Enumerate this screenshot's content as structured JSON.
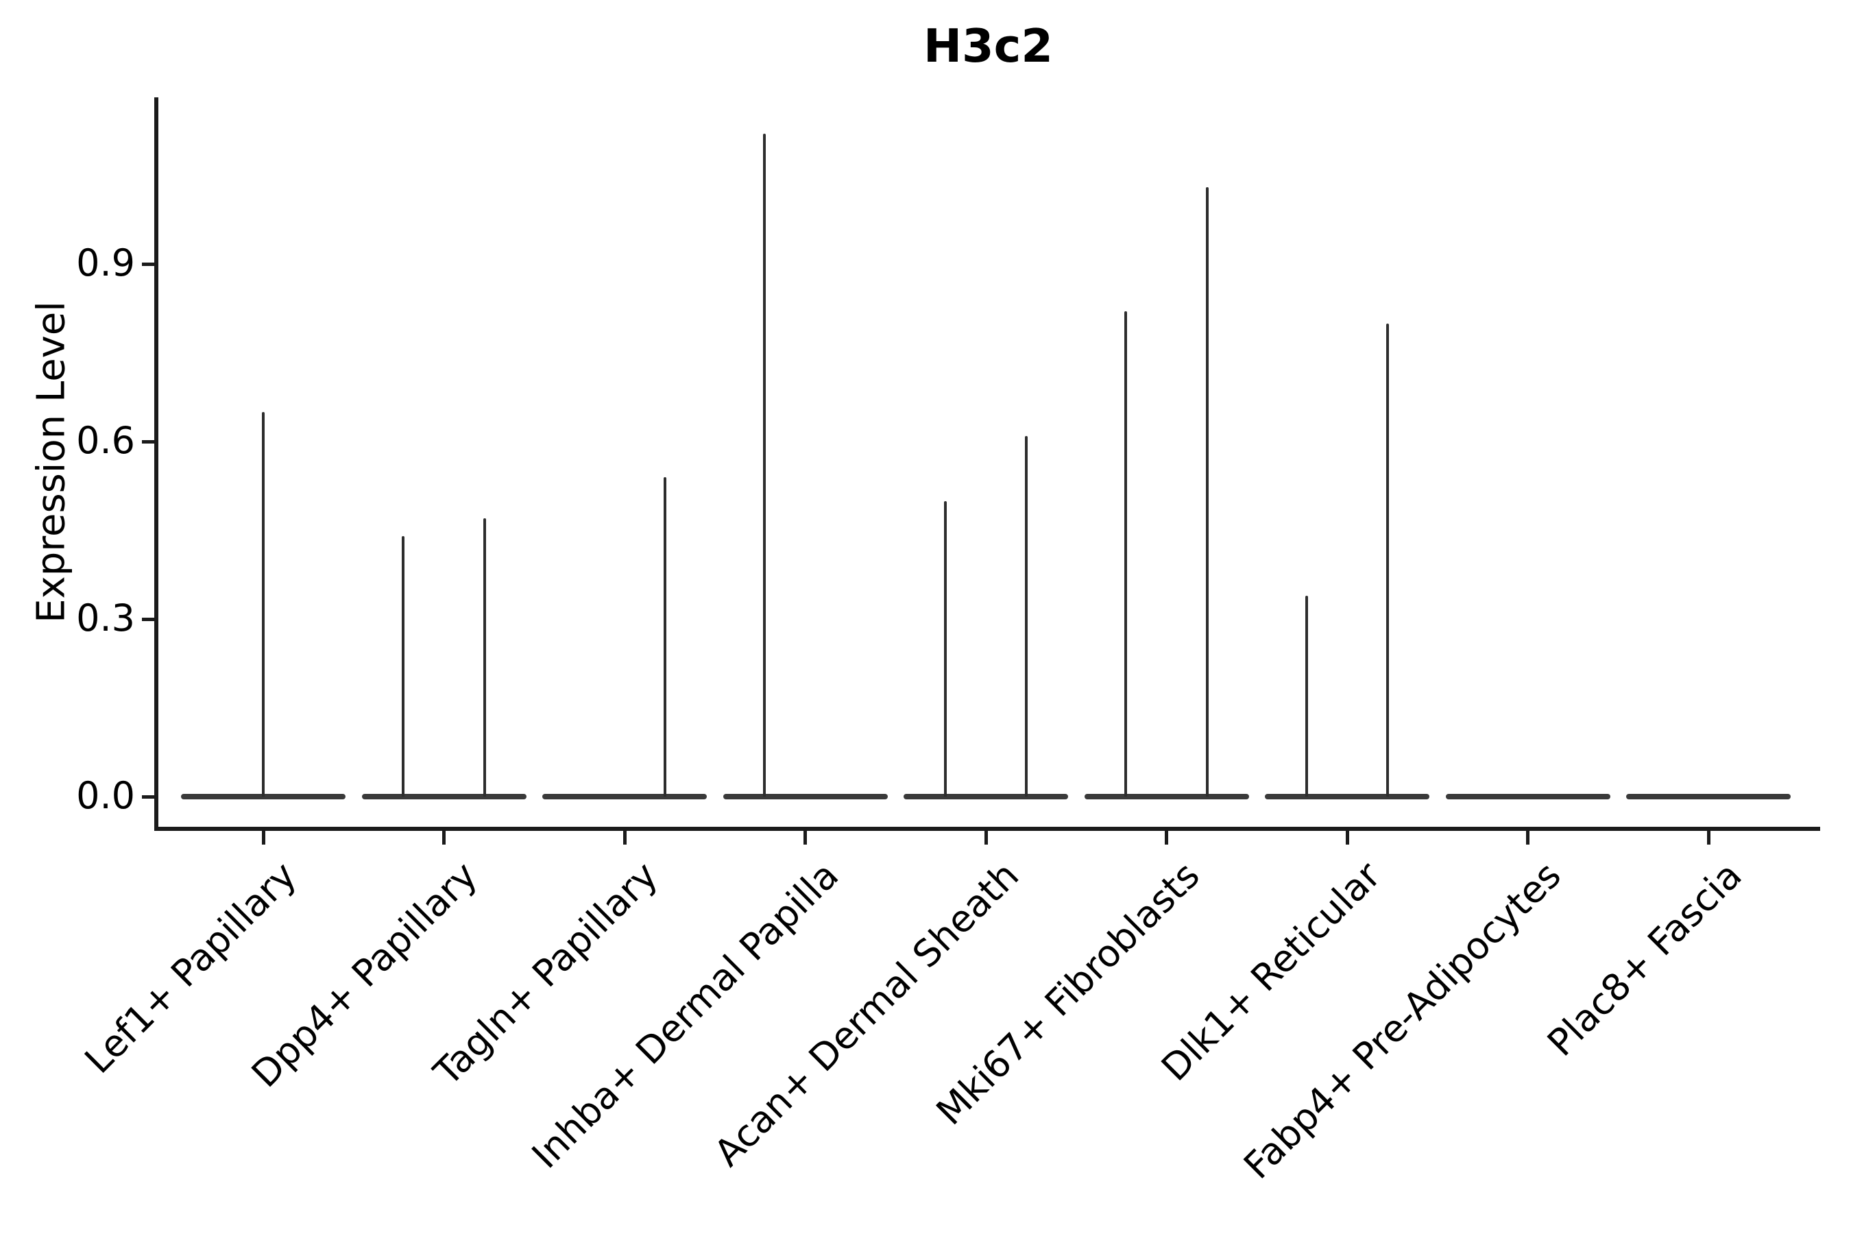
{
  "title": "H3c2",
  "y_axis": {
    "label": "Expression Level",
    "tick_labels": [
      "0.0",
      "0.3",
      "0.6",
      "0.9"
    ],
    "tick_values": [
      0.0,
      0.3,
      0.6,
      0.9
    ]
  },
  "chart_data": {
    "type": "violin",
    "title": "H3c2",
    "xlabel": "",
    "ylabel": "Expression Level",
    "legend": "none",
    "grid": false,
    "ylim": [
      -0.05,
      1.18
    ],
    "y_ticks": [
      0.0,
      0.3,
      0.6,
      0.9
    ],
    "x_tick_rotation_deg": 45,
    "categories": [
      "Lef1+ Papillary",
      "Dpp4+ Papillary",
      "Tagln+ Papillary",
      "Inhba+ Dermal Papilla",
      "Acan+ Dermal Sheath",
      "Mki67+ Fibroblasts",
      "Dlk1+ Reticular",
      "Fabp4+ Pre-Adipocytes",
      "Plac8+ Fascia"
    ],
    "series": [
      {
        "category": "Lef1+ Papillary",
        "baseline_value": 0.0,
        "spikes": [
          {
            "offset_frac": 0.0,
            "peak": 0.65
          }
        ]
      },
      {
        "category": "Dpp4+ Papillary",
        "baseline_value": 0.0,
        "spikes": [
          {
            "offset_frac": -0.224,
            "peak": 0.44
          },
          {
            "offset_frac": 0.224,
            "peak": 0.47
          }
        ]
      },
      {
        "category": "Tagln+ Papillary",
        "baseline_value": 0.0,
        "spikes": [
          {
            "offset_frac": 0.224,
            "peak": 0.54
          }
        ]
      },
      {
        "category": "Inhba+ Dermal Papilla",
        "baseline_value": 0.0,
        "spikes": [
          {
            "offset_frac": -0.224,
            "peak": 1.12
          }
        ]
      },
      {
        "category": "Acan+ Dermal Sheath",
        "baseline_value": 0.0,
        "spikes": [
          {
            "offset_frac": -0.224,
            "peak": 0.5
          },
          {
            "offset_frac": 0.224,
            "peak": 0.61
          }
        ]
      },
      {
        "category": "Mki67+ Fibroblasts",
        "baseline_value": 0.0,
        "spikes": [
          {
            "offset_frac": -0.224,
            "peak": 0.82
          },
          {
            "offset_frac": 0.224,
            "peak": 1.03
          }
        ]
      },
      {
        "category": "Dlk1+ Reticular",
        "baseline_value": 0.0,
        "spikes": [
          {
            "offset_frac": -0.224,
            "peak": 0.34
          },
          {
            "offset_frac": 0.224,
            "peak": 0.8
          }
        ]
      },
      {
        "category": "Fabp4+ Pre-Adipocytes",
        "baseline_value": 0.0,
        "spikes": []
      },
      {
        "category": "Plac8+ Fascia",
        "baseline_value": 0.0,
        "spikes": []
      }
    ],
    "colors": {
      "spike_line": "#2d2d2d",
      "baseline_line": "#3a3a3a",
      "spine": "#1b1b1b",
      "text": "#000000",
      "background": "#ffffff"
    }
  }
}
